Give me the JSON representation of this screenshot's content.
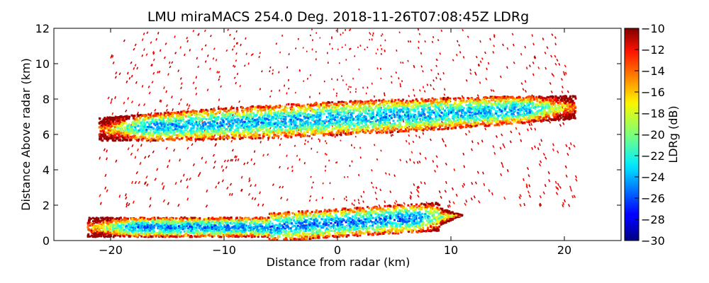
{
  "chart_data": {
    "type": "heatmap",
    "title": "LMU miraMACS 254.0 Deg. 2018-11-26T07:08:45Z  LDRg",
    "xlabel": "Distance from radar (km)",
    "ylabel": "Distance Above radar  (km)",
    "xlim": [
      -25,
      25
    ],
    "ylim": [
      0,
      12
    ],
    "x_ticks": [
      -20,
      -10,
      0,
      10,
      20
    ],
    "y_ticks": [
      0,
      2,
      4,
      6,
      8,
      10,
      12
    ],
    "colorbar": {
      "label": "LDRg (dB)",
      "range": [
        -30,
        -10
      ],
      "ticks": [
        -10,
        -12,
        -14,
        -16,
        -18,
        -20,
        -22,
        -24,
        -26,
        -28,
        -30
      ],
      "colormap": "jet"
    },
    "features": [
      {
        "name": "upper cloud layer",
        "x_range": [
          -21,
          21
        ],
        "y_range": [
          5.7,
          8.2
        ],
        "core_ldr": -24,
        "edge_ldr": -12
      },
      {
        "name": "lower layer",
        "x_range": [
          -22,
          11
        ],
        "y_range": [
          0,
          2.2
        ],
        "core_ldr": -25,
        "edge_ldr": -12
      },
      {
        "name": "scattered speckle",
        "x_range": [
          -21,
          21
        ],
        "y_range": [
          2,
          12
        ],
        "ldr": -11
      }
    ],
    "grid": false,
    "legend": "colorbar-right"
  }
}
